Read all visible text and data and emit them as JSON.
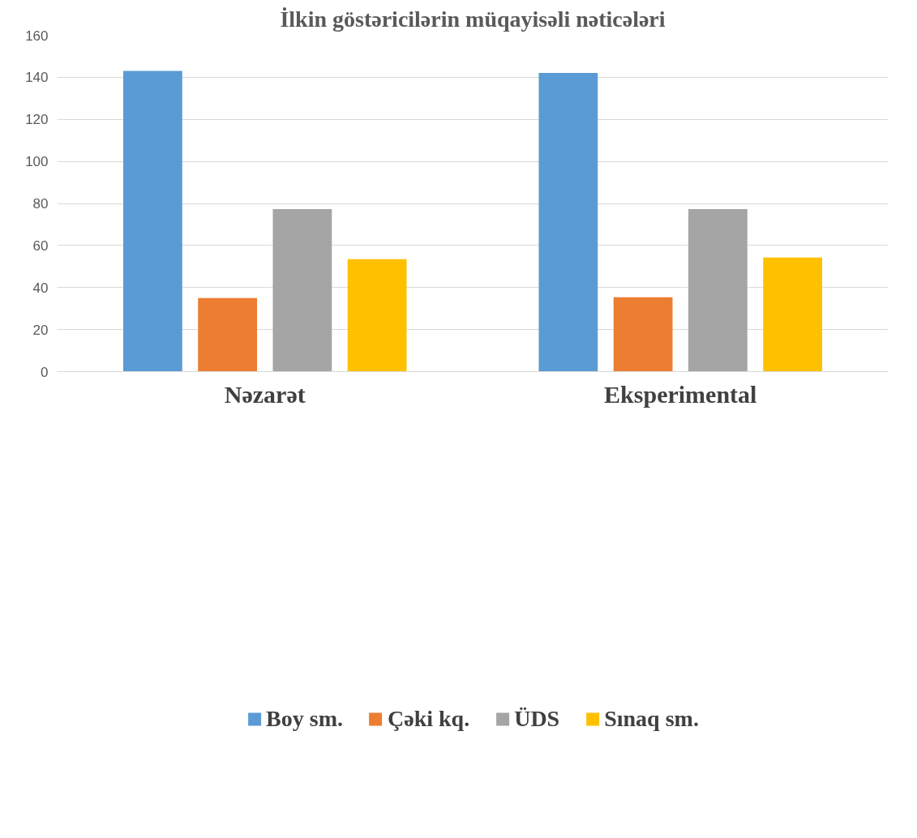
{
  "chart_data": {
    "type": "bar",
    "title": "İlkin göstəricilərin müqayisəli nəticələri",
    "categories": [
      "Nəzarət",
      "Eksperimental"
    ],
    "series": [
      {
        "name": "Boy sm.",
        "color": "#5b9bd5",
        "values": [
          143,
          142.1
        ]
      },
      {
        "name": "Çəki kq.",
        "color": "#ed7d31",
        "values": [
          35,
          35.4
        ]
      },
      {
        "name": "ÜDS",
        "color": "#a5a5a5",
        "values": [
          77.3,
          77.3
        ]
      },
      {
        "name": "Sınaq sm.",
        "color": "#ffc000",
        "values": [
          53.5,
          54.3
        ]
      }
    ],
    "ylim": [
      0,
      160
    ],
    "yticks": [
      0,
      20,
      40,
      60,
      80,
      100,
      120,
      140,
      160
    ],
    "grid": "y",
    "legend": "bottom"
  }
}
